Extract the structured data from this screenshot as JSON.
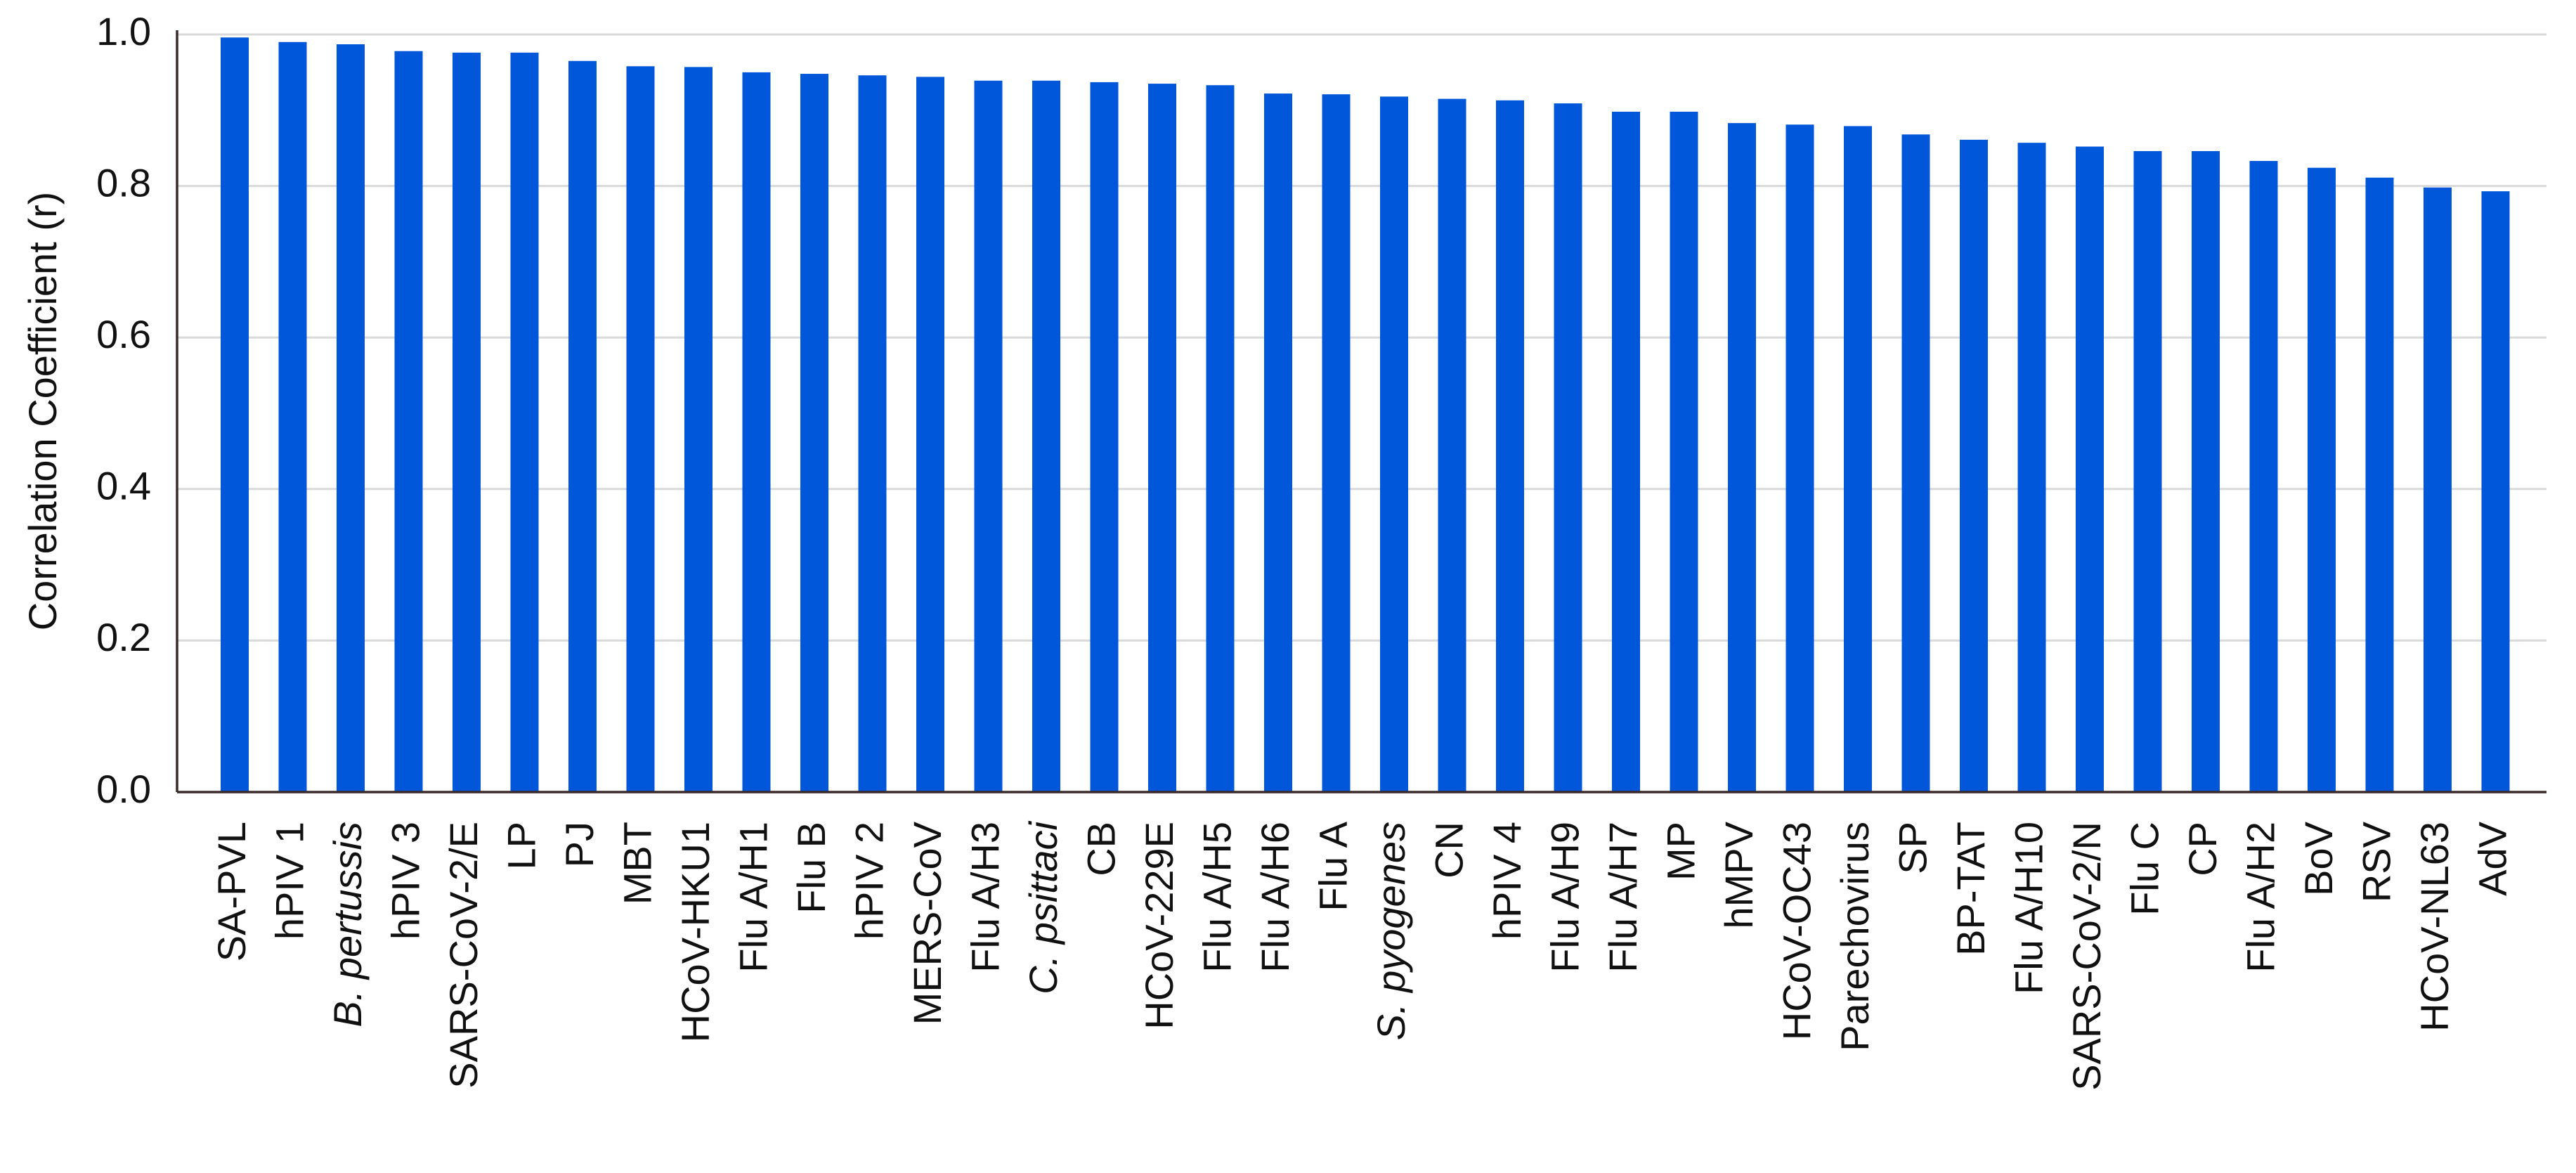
{
  "chart_data": {
    "type": "bar",
    "y_label": "Correlation Coefficient (r)",
    "categories": [
      "SA-PVL",
      "hPIV 1",
      "B. pertussis",
      "hPIV 3",
      "SARS-CoV-2/E",
      "LP",
      "PJ",
      "MBT",
      "HCoV-HKU1",
      "Flu A/H1",
      "Flu B",
      "hPIV 2",
      "MERS-CoV",
      "Flu A/H3",
      "C. psittaci",
      "CB",
      "HCoV-229E",
      "Flu A/H5",
      "Flu A/H6",
      "Flu A",
      "S. pyogenes",
      "CN",
      "hPIV 4",
      "Flu A/H9",
      "Flu A/H7",
      "MP",
      "hMPV",
      "HCoV-OC43",
      "Parechovirus",
      "SP",
      "BP-TAT",
      "Flu A/H10",
      "SARS-CoV-2/N",
      "Flu C",
      "CP",
      "Flu A/H2",
      "BoV",
      "RSV",
      "HCoV-NL63",
      "AdV"
    ],
    "italic_category_indices": [
      2,
      14,
      20
    ],
    "values": [
      0.996,
      0.99,
      0.987,
      0.978,
      0.976,
      0.976,
      0.965,
      0.958,
      0.957,
      0.95,
      0.948,
      0.946,
      0.944,
      0.939,
      0.939,
      0.937,
      0.935,
      0.933,
      0.922,
      0.921,
      0.918,
      0.915,
      0.913,
      0.909,
      0.898,
      0.898,
      0.883,
      0.881,
      0.879,
      0.868,
      0.861,
      0.857,
      0.852,
      0.846,
      0.846,
      0.833,
      0.824,
      0.811,
      0.798,
      0.793
    ],
    "color": "#0057d9",
    "ylim": [
      0,
      1.0
    ],
    "yticks": [
      {
        "value": 0,
        "label": "0.0"
      },
      {
        "value": 0.2,
        "label": "0.2"
      },
      {
        "value": 0.4,
        "label": "0.4"
      },
      {
        "value": 0.6,
        "label": "0.6"
      },
      {
        "value": 0.8,
        "label": "0.8"
      },
      {
        "value": 1.0,
        "label": "1.0"
      }
    ],
    "grid": true
  }
}
